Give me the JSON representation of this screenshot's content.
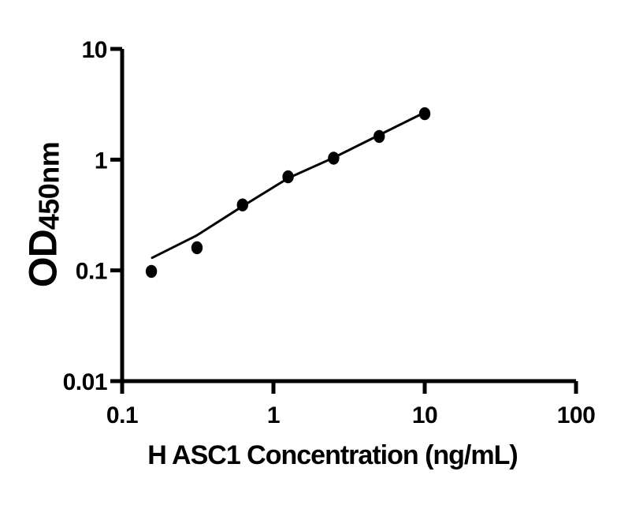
{
  "figure": {
    "background_color": "#ffffff",
    "ink_color": "#000000"
  },
  "chart_data": {
    "type": "scatter",
    "xlabel": "H ASC1 Concentration (ng/mL)",
    "ylabel_main": "OD",
    "ylabel_sub": "450nm",
    "x_scale": "log",
    "y_scale": "log",
    "xlim": [
      0.1,
      100
    ],
    "ylim": [
      0.01,
      10
    ],
    "grid": false,
    "legend": "none",
    "x_ticks": [
      {
        "value": 0.1,
        "label": "0.1"
      },
      {
        "value": 1,
        "label": "1"
      },
      {
        "value": 10,
        "label": "10"
      },
      {
        "value": 100,
        "label": "100"
      }
    ],
    "y_ticks": [
      {
        "value": 0.01,
        "label": "0.01"
      },
      {
        "value": 0.1,
        "label": "0.1"
      },
      {
        "value": 1,
        "label": "1"
      },
      {
        "value": 10,
        "label": "10"
      }
    ],
    "series": [
      {
        "name": "standard-points",
        "marker": "filled-circle",
        "color": "#000000",
        "x": [
          0.156,
          0.3125,
          0.625,
          1.25,
          2.5,
          5,
          10
        ],
        "y": [
          0.098,
          0.16,
          0.39,
          0.7,
          1.03,
          1.62,
          2.6
        ]
      }
    ],
    "fit_line": {
      "name": "standard-curve-fit",
      "color": "#000000",
      "points": [
        [
          0.158,
          0.13
        ],
        [
          0.31,
          0.206
        ],
        [
          0.62,
          0.377
        ],
        [
          1.25,
          0.68
        ],
        [
          2.5,
          1.04
        ],
        [
          5.0,
          1.67
        ],
        [
          10.0,
          2.67
        ]
      ]
    }
  }
}
